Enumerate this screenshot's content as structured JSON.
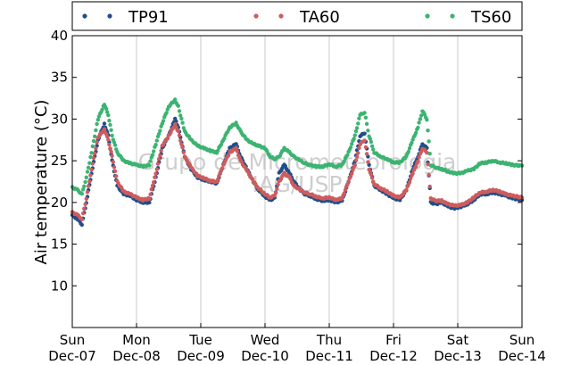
{
  "chart_data": {
    "type": "scatter",
    "ylabel": "Air temperature (°C)",
    "ylim": [
      5,
      40
    ],
    "yticks": [
      10,
      15,
      20,
      25,
      30,
      35,
      40
    ],
    "xlim": [
      0,
      7
    ],
    "xticks": [
      {
        "day": "Sun",
        "date": "Dec-07"
      },
      {
        "day": "Mon",
        "date": "Dec-08"
      },
      {
        "day": "Tue",
        "date": "Dec-09"
      },
      {
        "day": "Wed",
        "date": "Dec-10"
      },
      {
        "day": "Thu",
        "date": "Dec-11"
      },
      {
        "day": "Fri",
        "date": "Dec-12"
      },
      {
        "day": "Sat",
        "date": "Dec-13"
      },
      {
        "day": "Sun",
        "date": "Dec-14"
      }
    ],
    "grid": "vertical",
    "legend_position": "top",
    "watermark": [
      "Grupo de Micrometeorologia",
      "IAG/USP"
    ],
    "series": [
      {
        "name": "TP91",
        "color": "#1f4e8c",
        "points": [
          [
            0,
            18.5
          ],
          [
            0.08,
            18.0
          ],
          [
            0.15,
            17.4
          ],
          [
            0.22,
            20.0
          ],
          [
            0.3,
            23.5
          ],
          [
            0.4,
            27.5
          ],
          [
            0.5,
            29.4
          ],
          [
            0.56,
            28.0
          ],
          [
            0.62,
            25.0
          ],
          [
            0.7,
            22.0
          ],
          [
            0.8,
            21.0
          ],
          [
            0.9,
            20.8
          ],
          [
            1.0,
            20.3
          ],
          [
            1.1,
            20.0
          ],
          [
            1.2,
            20.0
          ],
          [
            1.3,
            23.0
          ],
          [
            1.4,
            26.5
          ],
          [
            1.5,
            28.0
          ],
          [
            1.6,
            30.0
          ],
          [
            1.65,
            29.0
          ],
          [
            1.75,
            25.5
          ],
          [
            1.85,
            24.0
          ],
          [
            1.95,
            23.0
          ],
          [
            2.05,
            22.7
          ],
          [
            2.15,
            22.5
          ],
          [
            2.25,
            22.3
          ],
          [
            2.35,
            24.5
          ],
          [
            2.45,
            26.5
          ],
          [
            2.55,
            27.0
          ],
          [
            2.62,
            25.5
          ],
          [
            2.72,
            24.0
          ],
          [
            2.82,
            22.5
          ],
          [
            2.9,
            21.5
          ],
          [
            3.0,
            20.7
          ],
          [
            3.08,
            20.3
          ],
          [
            3.15,
            20.5
          ],
          [
            3.22,
            23.5
          ],
          [
            3.3,
            24.5
          ],
          [
            3.38,
            23.5
          ],
          [
            3.45,
            22.5
          ],
          [
            3.55,
            21.5
          ],
          [
            3.62,
            21.0
          ],
          [
            3.7,
            20.8
          ],
          [
            3.8,
            20.4
          ],
          [
            3.9,
            20.2
          ],
          [
            4.0,
            20.3
          ],
          [
            4.1,
            20.0
          ],
          [
            4.2,
            20.2
          ],
          [
            4.3,
            22.5
          ],
          [
            4.4,
            25.0
          ],
          [
            4.48,
            28.0
          ],
          [
            4.55,
            28.3
          ],
          [
            4.62,
            24.5
          ],
          [
            4.7,
            22.0
          ],
          [
            4.8,
            21.5
          ],
          [
            4.9,
            21.0
          ],
          [
            5.0,
            20.5
          ],
          [
            5.1,
            20.3
          ],
          [
            5.2,
            21.5
          ],
          [
            5.3,
            24.0
          ],
          [
            5.38,
            25.5
          ],
          [
            5.45,
            27.0
          ],
          [
            5.52,
            26.5
          ],
          [
            5.58,
            20.0
          ],
          [
            5.65,
            19.8
          ],
          [
            5.75,
            20.0
          ],
          [
            5.85,
            19.5
          ],
          [
            5.95,
            19.3
          ],
          [
            6.05,
            19.5
          ],
          [
            6.15,
            19.8
          ],
          [
            6.25,
            20.3
          ],
          [
            6.35,
            21.0
          ],
          [
            6.45,
            21.0
          ],
          [
            6.55,
            21.2
          ],
          [
            6.65,
            21.0
          ],
          [
            6.75,
            20.8
          ],
          [
            6.85,
            20.5
          ],
          [
            7.0,
            20.3
          ]
        ]
      },
      {
        "name": "TA60",
        "color": "#cd5c5c",
        "points": [
          [
            0,
            18.8
          ],
          [
            0.08,
            18.5
          ],
          [
            0.15,
            18.0
          ],
          [
            0.22,
            20.5
          ],
          [
            0.3,
            24.0
          ],
          [
            0.4,
            27.8
          ],
          [
            0.5,
            28.8
          ],
          [
            0.56,
            27.5
          ],
          [
            0.62,
            25.5
          ],
          [
            0.7,
            22.5
          ],
          [
            0.8,
            21.3
          ],
          [
            0.9,
            21.0
          ],
          [
            1.0,
            20.6
          ],
          [
            1.1,
            20.3
          ],
          [
            1.2,
            20.5
          ],
          [
            1.3,
            23.5
          ],
          [
            1.4,
            26.8
          ],
          [
            1.5,
            28.0
          ],
          [
            1.6,
            29.3
          ],
          [
            1.65,
            28.5
          ],
          [
            1.75,
            25.5
          ],
          [
            1.85,
            24.2
          ],
          [
            1.95,
            23.2
          ],
          [
            2.05,
            22.9
          ],
          [
            2.15,
            22.6
          ],
          [
            2.25,
            22.5
          ],
          [
            2.35,
            24.5
          ],
          [
            2.45,
            26.0
          ],
          [
            2.55,
            26.5
          ],
          [
            2.62,
            25.0
          ],
          [
            2.72,
            23.8
          ],
          [
            2.82,
            22.5
          ],
          [
            2.9,
            21.7
          ],
          [
            3.0,
            21.0
          ],
          [
            3.08,
            20.6
          ],
          [
            3.15,
            20.8
          ],
          [
            3.22,
            22.5
          ],
          [
            3.3,
            23.5
          ],
          [
            3.38,
            23.0
          ],
          [
            3.45,
            22.0
          ],
          [
            3.55,
            21.5
          ],
          [
            3.62,
            21.2
          ],
          [
            3.7,
            21.0
          ],
          [
            3.8,
            20.7
          ],
          [
            3.9,
            20.5
          ],
          [
            4.0,
            20.6
          ],
          [
            4.1,
            20.3
          ],
          [
            4.2,
            20.5
          ],
          [
            4.3,
            22.5
          ],
          [
            4.4,
            24.5
          ],
          [
            4.48,
            27.0
          ],
          [
            4.55,
            27.5
          ],
          [
            4.62,
            24.0
          ],
          [
            4.7,
            22.2
          ],
          [
            4.8,
            21.7
          ],
          [
            4.9,
            21.3
          ],
          [
            5.0,
            20.8
          ],
          [
            5.1,
            20.6
          ],
          [
            5.2,
            21.5
          ],
          [
            5.3,
            23.5
          ],
          [
            5.38,
            25.0
          ],
          [
            5.45,
            26.5
          ],
          [
            5.52,
            26.0
          ],
          [
            5.58,
            20.5
          ],
          [
            5.65,
            20.2
          ],
          [
            5.75,
            20.2
          ],
          [
            5.85,
            19.8
          ],
          [
            5.95,
            19.6
          ],
          [
            6.05,
            19.7
          ],
          [
            6.15,
            20.0
          ],
          [
            6.25,
            20.6
          ],
          [
            6.35,
            21.2
          ],
          [
            6.45,
            21.3
          ],
          [
            6.55,
            21.5
          ],
          [
            6.65,
            21.3
          ],
          [
            6.75,
            21.0
          ],
          [
            6.85,
            20.8
          ],
          [
            7.0,
            20.6
          ]
        ]
      },
      {
        "name": "TS60",
        "color": "#3cb371",
        "points": [
          [
            0,
            21.8
          ],
          [
            0.08,
            21.5
          ],
          [
            0.15,
            21.0
          ],
          [
            0.22,
            23.0
          ],
          [
            0.3,
            26.0
          ],
          [
            0.4,
            30.0
          ],
          [
            0.5,
            31.8
          ],
          [
            0.56,
            30.5
          ],
          [
            0.62,
            28.0
          ],
          [
            0.7,
            26.0
          ],
          [
            0.8,
            25.0
          ],
          [
            0.9,
            24.7
          ],
          [
            1.0,
            24.5
          ],
          [
            1.1,
            24.3
          ],
          [
            1.2,
            24.5
          ],
          [
            1.3,
            27.0
          ],
          [
            1.4,
            29.5
          ],
          [
            1.5,
            31.5
          ],
          [
            1.6,
            32.3
          ],
          [
            1.65,
            31.5
          ],
          [
            1.75,
            28.5
          ],
          [
            1.85,
            27.5
          ],
          [
            1.95,
            26.8
          ],
          [
            2.05,
            26.5
          ],
          [
            2.15,
            26.2
          ],
          [
            2.25,
            26.0
          ],
          [
            2.35,
            27.5
          ],
          [
            2.45,
            29.0
          ],
          [
            2.55,
            29.5
          ],
          [
            2.62,
            28.5
          ],
          [
            2.72,
            27.5
          ],
          [
            2.82,
            27.0
          ],
          [
            2.9,
            26.8
          ],
          [
            3.0,
            26.5
          ],
          [
            3.08,
            25.5
          ],
          [
            3.15,
            25.2
          ],
          [
            3.22,
            25.5
          ],
          [
            3.3,
            26.5
          ],
          [
            3.38,
            26.0
          ],
          [
            3.45,
            25.5
          ],
          [
            3.55,
            25.0
          ],
          [
            3.62,
            24.7
          ],
          [
            3.7,
            24.5
          ],
          [
            3.8,
            24.3
          ],
          [
            3.9,
            24.3
          ],
          [
            4.0,
            24.6
          ],
          [
            4.1,
            24.3
          ],
          [
            4.2,
            24.5
          ],
          [
            4.3,
            26.0
          ],
          [
            4.4,
            28.0
          ],
          [
            4.48,
            30.5
          ],
          [
            4.55,
            30.8
          ],
          [
            4.62,
            28.0
          ],
          [
            4.7,
            26.0
          ],
          [
            4.8,
            25.5
          ],
          [
            4.9,
            25.2
          ],
          [
            5.0,
            24.8
          ],
          [
            5.1,
            24.8
          ],
          [
            5.2,
            25.5
          ],
          [
            5.3,
            27.5
          ],
          [
            5.38,
            29.0
          ],
          [
            5.45,
            31.0
          ],
          [
            5.52,
            30.0
          ],
          [
            5.58,
            24.5
          ],
          [
            5.65,
            24.2
          ],
          [
            5.75,
            24.0
          ],
          [
            5.85,
            23.7
          ],
          [
            5.95,
            23.5
          ],
          [
            6.05,
            23.5
          ],
          [
            6.15,
            23.8
          ],
          [
            6.25,
            24.0
          ],
          [
            6.35,
            24.7
          ],
          [
            6.45,
            24.8
          ],
          [
            6.55,
            25.0
          ],
          [
            6.65,
            24.8
          ],
          [
            6.75,
            24.7
          ],
          [
            6.85,
            24.5
          ],
          [
            7.0,
            24.4
          ]
        ]
      }
    ]
  }
}
